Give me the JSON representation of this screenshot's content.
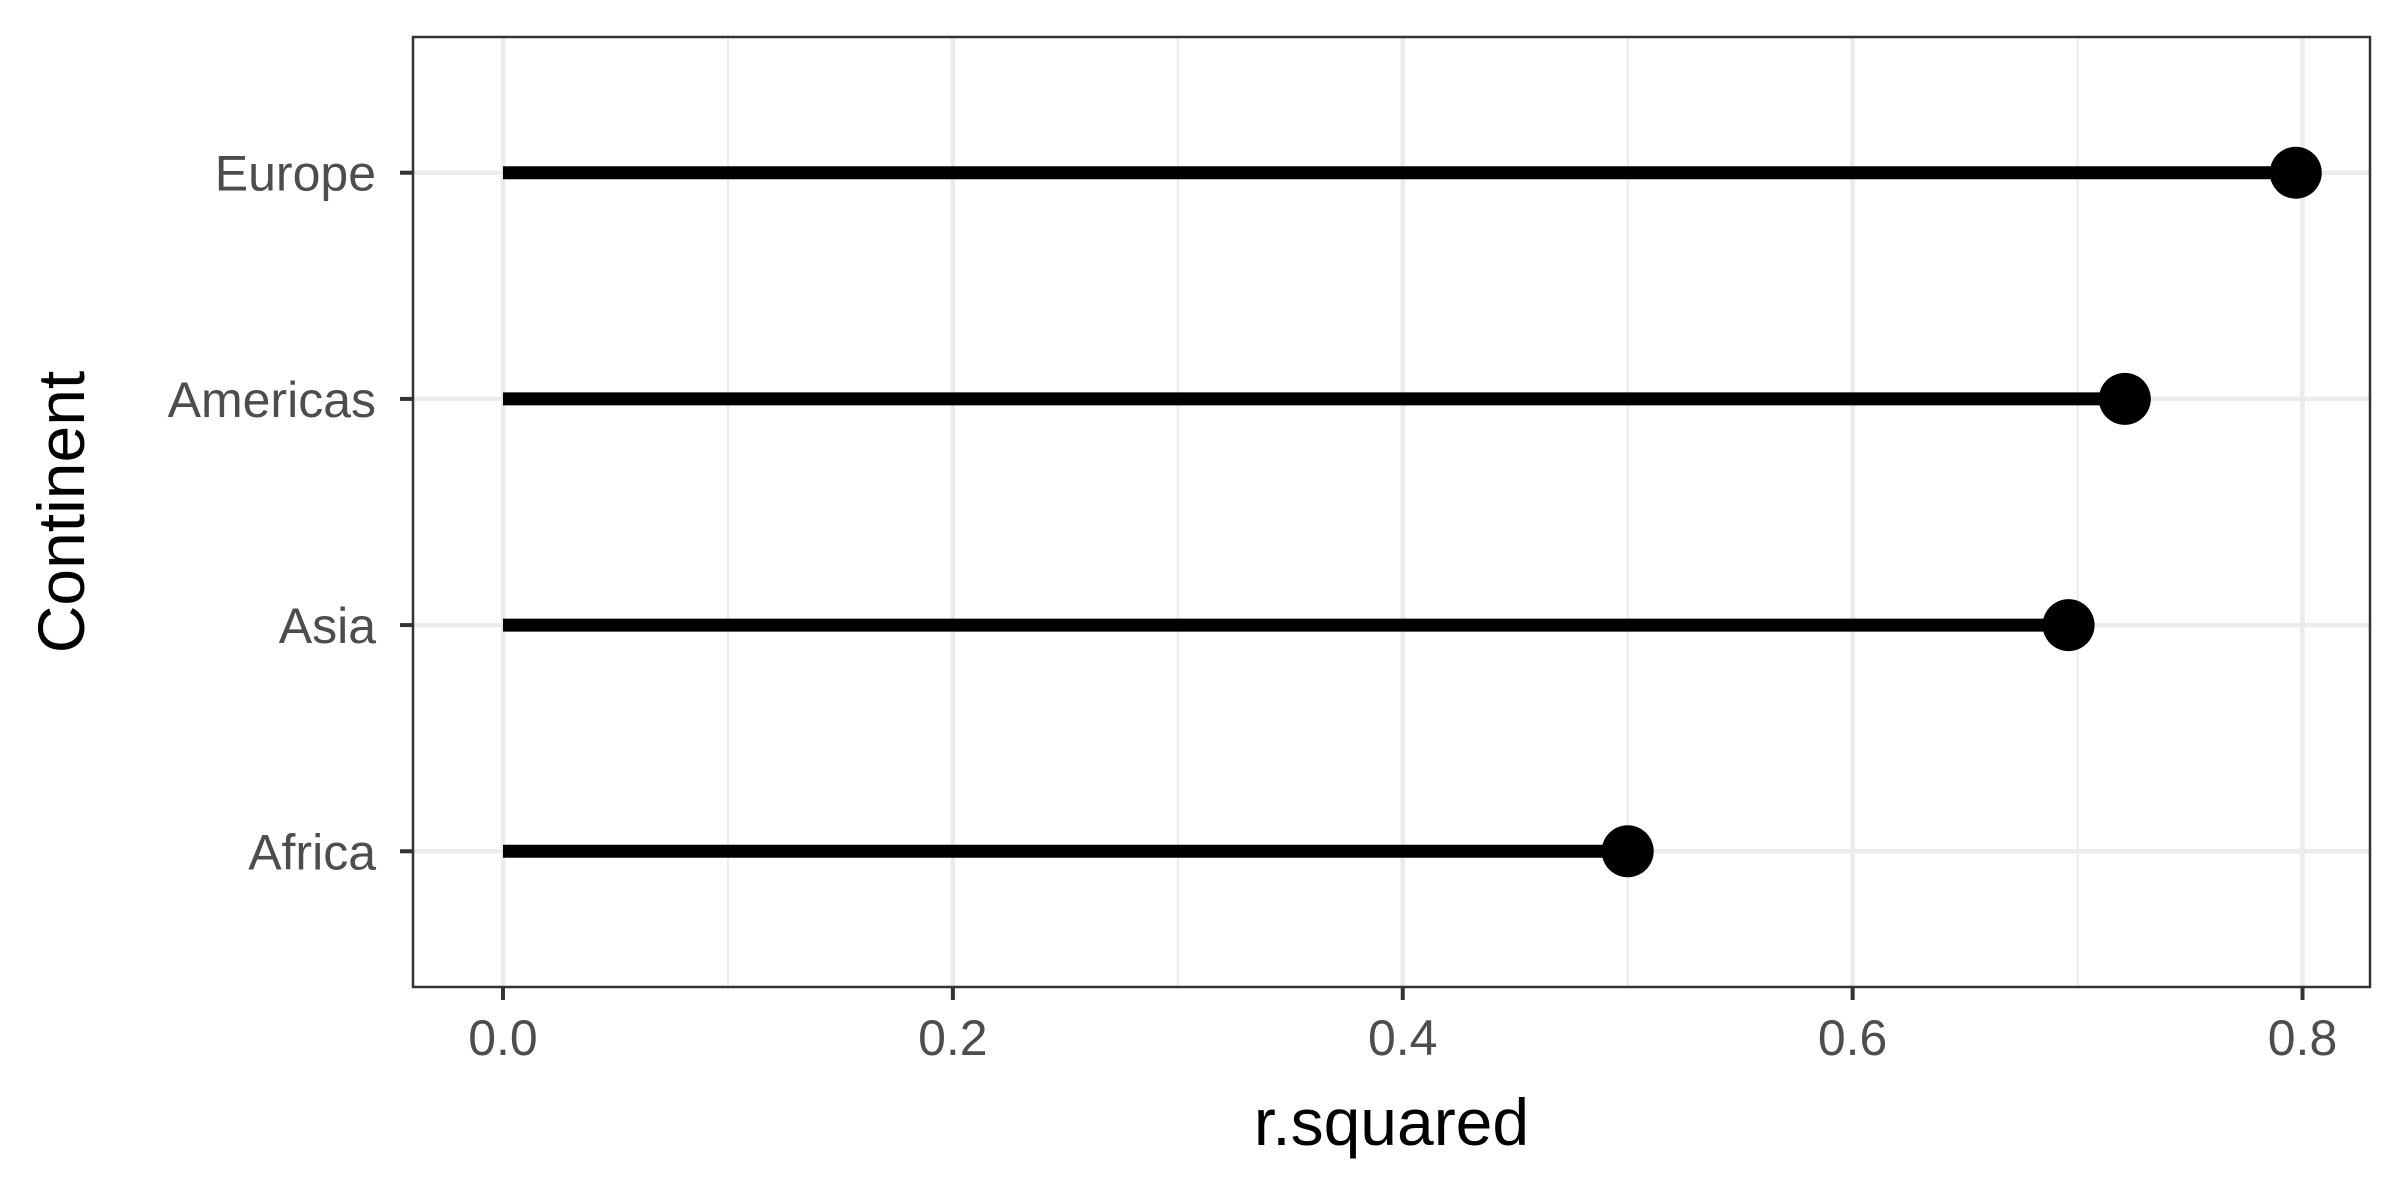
{
  "chart_data": {
    "type": "lollipop",
    "categories": [
      "Africa",
      "Asia",
      "Americas",
      "Europe"
    ],
    "values": [
      0.5,
      0.696,
      0.721,
      0.797
    ],
    "xlabel": "r.squared",
    "ylabel": "Continent",
    "xlim": [
      -0.04,
      0.83
    ],
    "xticks": [
      0.0,
      0.2,
      0.4,
      0.6,
      0.8
    ],
    "xtick_labels": [
      "0.0",
      "0.2",
      "0.4",
      "0.6",
      "0.8"
    ],
    "xtick_minor": [
      0.1,
      0.3,
      0.5,
      0.7
    ],
    "grid": true,
    "colors": {
      "mark": "#000000",
      "grid": "#ebebeb",
      "panel_border": "#333333",
      "tick_text": "#4d4d4d"
    }
  }
}
